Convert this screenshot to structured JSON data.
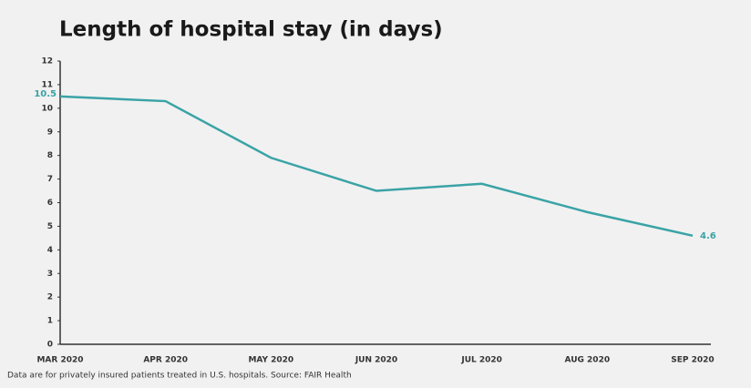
{
  "chart_data": {
    "type": "line",
    "title": "Length of hospital stay (in days)",
    "categories": [
      "MAR 2020",
      "APR 2020",
      "MAY 2020",
      "JUN 2020",
      "JUL 2020",
      "AUG 2020",
      "SEP 2020"
    ],
    "values": [
      10.5,
      10.3,
      7.9,
      6.5,
      6.8,
      5.6,
      4.6
    ],
    "color": "#3aa3a6",
    "labeled_points": "ends",
    "ylim": [
      0,
      12
    ],
    "yticks": [
      0,
      1,
      2,
      3,
      4,
      5,
      6,
      7,
      8,
      9,
      10,
      11,
      12
    ],
    "footnote": "Data are for privately insured patients treated in U.S. hospitals. Source: FAIR Health"
  }
}
